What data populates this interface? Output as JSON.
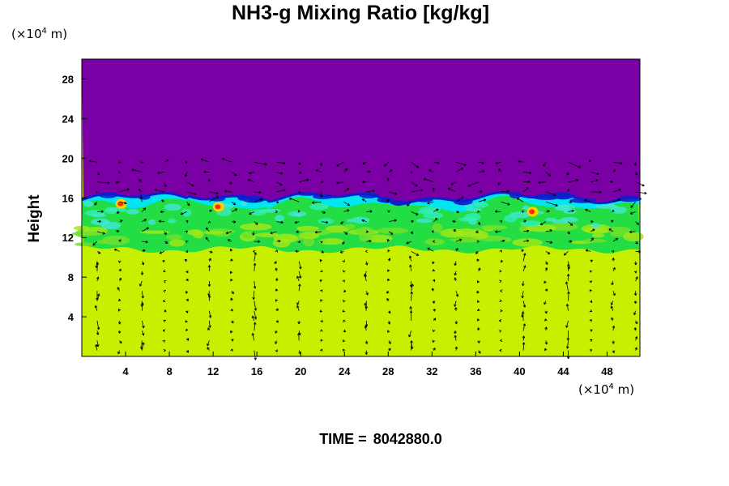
{
  "chart_data": {
    "type": "heatmap",
    "title": "NH3-g Mixing Ratio [kg/kg]",
    "ylabel": "Height",
    "xlabel": "",
    "x_unit_prefix": "(×10",
    "x_unit_exp": "4",
    "x_unit_suffix": " m)",
    "y_unit_prefix": "(×10",
    "y_unit_exp": "4",
    "y_unit_suffix": " m)",
    "xlim": [
      0,
      51
    ],
    "ylim": [
      0,
      30
    ],
    "x_ticks": [
      4,
      8,
      12,
      16,
      20,
      24,
      28,
      32,
      36,
      40,
      44,
      48
    ],
    "y_ticks": [
      4,
      8,
      12,
      16,
      20,
      24,
      28
    ],
    "time_label": "TIME =",
    "time_value": "8042880.0",
    "colors": {
      "upper": "#7a00a6",
      "lower": "#c6f000",
      "green": "#22dd44",
      "cyan": "#00e5f0",
      "blue": "#0d1fcc",
      "hot": "#ff2a00",
      "warm": "#ffd000"
    }
  }
}
